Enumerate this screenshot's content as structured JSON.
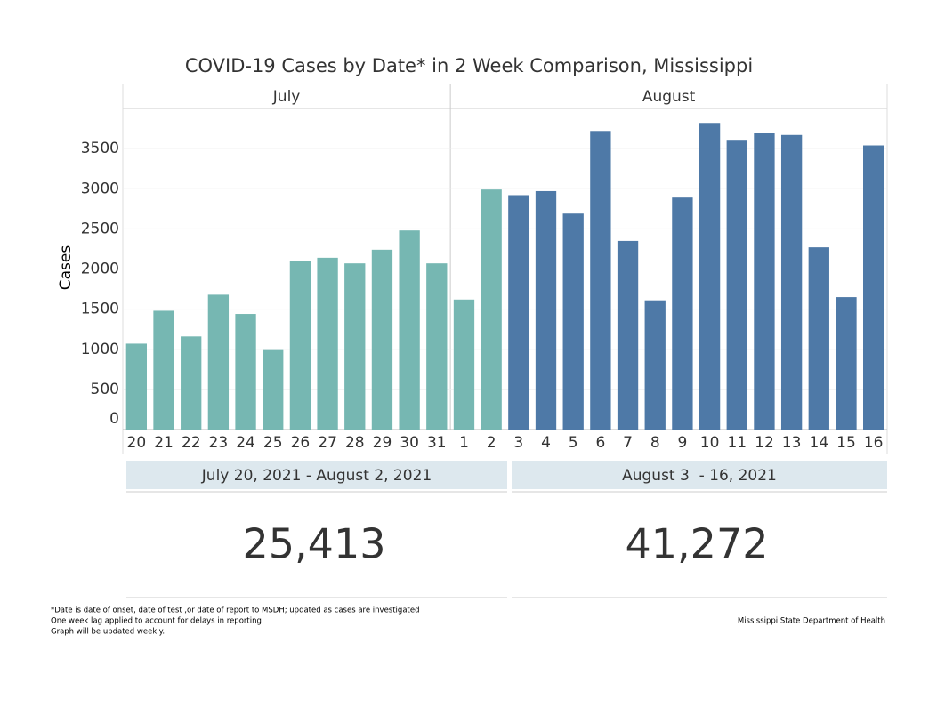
{
  "chart_data": {
    "type": "bar",
    "title": "COVID-19 Cases by Date* in 2 Week Comparison, Mississippi",
    "y_label": "Cases",
    "panels": [
      "July",
      "August"
    ],
    "categories": [
      "20",
      "21",
      "22",
      "23",
      "24",
      "25",
      "26",
      "27",
      "28",
      "29",
      "30",
      "31",
      "1",
      "2",
      "3",
      "4",
      "5",
      "6",
      "7",
      "8",
      "9",
      "10",
      "11",
      "12",
      "13",
      "14",
      "15",
      "16"
    ],
    "series": [
      {
        "name": "July 20, 2021 - August 2, 2021",
        "color": "#76b7b2",
        "total": 25413,
        "total_label": "25,413",
        "values": [
          1070,
          1480,
          1160,
          1680,
          1440,
          990,
          2100,
          2140,
          2070,
          2240,
          2480,
          2070,
          1620,
          2990,
          null,
          null,
          null,
          null,
          null,
          null,
          null,
          null,
          null,
          null,
          null,
          null,
          null,
          null
        ]
      },
      {
        "name": "August 3  - 16, 2021",
        "color": "#4e79a7",
        "total": 41272,
        "total_label": "41,272",
        "values": [
          null,
          null,
          null,
          null,
          null,
          null,
          null,
          null,
          null,
          null,
          null,
          null,
          null,
          null,
          2920,
          2970,
          2690,
          3720,
          2350,
          1610,
          2890,
          3820,
          3610,
          3700,
          3670,
          2270,
          1650,
          3540
        ]
      }
    ],
    "ylim": [
      0,
      4000
    ],
    "yticks": [
      0,
      500,
      1000,
      1500,
      2000,
      2500,
      3000,
      3500
    ],
    "grid": true,
    "notes": [
      "*Date is date of onset, date of test ,or date of report to MSDH; updated as cases are investigated",
      "One week lag applied to account for delays in reporting",
      "Graph will be updated weekly."
    ],
    "source": "Mississippi State Department of Health"
  }
}
